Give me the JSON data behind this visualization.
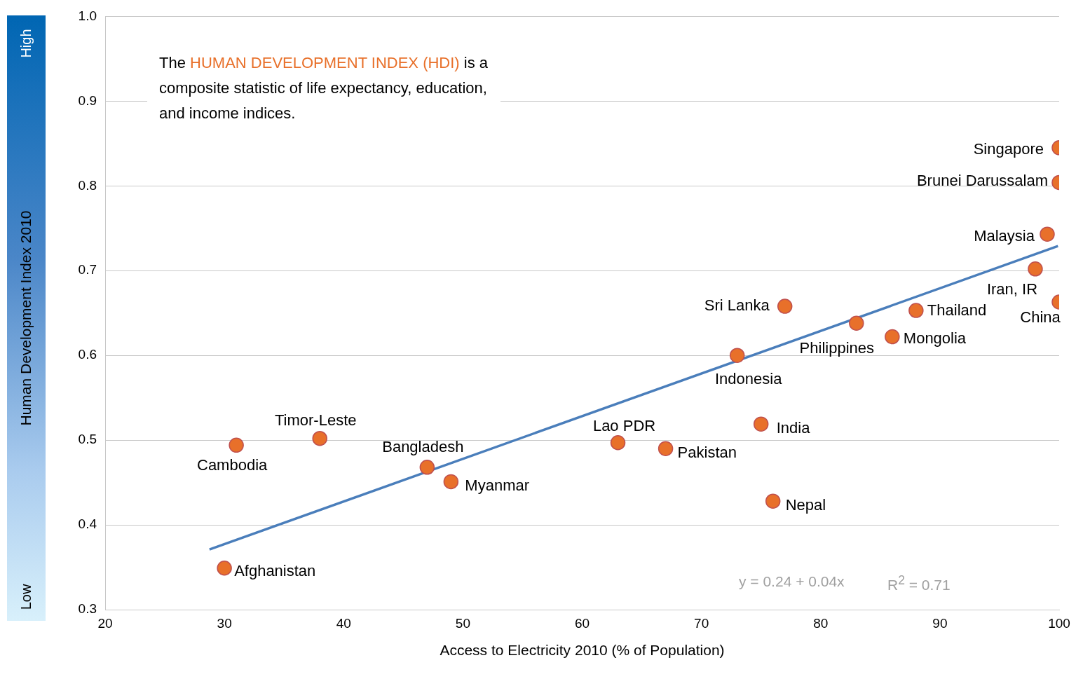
{
  "chart_data": {
    "type": "scatter",
    "xlabel": "Access to Electricity 2010 (% of Population)",
    "ylabel": "Human Development Index 2010",
    "annotations": [
      "The",
      "HUMAN DEVELOPMENT INDEX (HDI)",
      "is a composite statistic of life expectancy, education, and income indices.",
      "y = 0.24 + 0.04x",
      "R$^{2}$ = 0.71",
      "High",
      "Low"
    ],
    "xlim": [
      20,
      100
    ],
    "xticks": [
      20,
      30,
      40,
      50,
      60,
      70,
      80,
      90,
      100
    ],
    "ylim": [
      0.3,
      1.0
    ],
    "yticks": [
      {
        "value": 0.3,
        "label": "0.3"
      },
      {
        "value": 0.4,
        "label": "0.4"
      },
      {
        "value": 0.5,
        "label": "0.5"
      },
      {
        "value": 0.6,
        "label": "0.6"
      },
      {
        "value": 0.7,
        "label": "0.7"
      },
      {
        "value": 0.8,
        "label": "0.8"
      },
      {
        "value": 0.9,
        "label": "0.9"
      },
      {
        "value": 1.0,
        "label": "1.0"
      }
    ],
    "grid": "y",
    "legend": false,
    "marker": "circle",
    "series": [
      {
        "type": "scatter",
        "color": "#e8702a",
        "x": [
          100,
          100,
          99,
          98,
          100,
          77,
          83,
          88,
          86,
          73,
          75,
          76,
          67,
          63,
          49,
          47,
          38,
          31,
          30
        ],
        "values": [
          0.845,
          0.804,
          0.743,
          0.702,
          0.663,
          0.658,
          0.638,
          0.653,
          0.622,
          0.6,
          0.519,
          0.428,
          0.49,
          0.497,
          0.451,
          0.468,
          0.502,
          0.494,
          0.349
        ],
        "value_labels": [
          "Singapore",
          "Brunei Darussalam",
          "Malaysia",
          "Iran, IR",
          "China",
          "Sri Lanka",
          "Philippines",
          "Thailand",
          "Mongolia",
          "Indonesia",
          "India",
          "Nepal",
          "Pakistan",
          "Lao PDR",
          "Myanmar",
          "Bangladesh",
          "Timor-Leste",
          "Cambodia",
          "Afghanistan"
        ]
      },
      {
        "type": "line",
        "color": "#4a7ebb",
        "x": [
          28.75,
          99.9
        ],
        "values": [
          0.371,
          0.729
        ],
        "line_style": "solid",
        "marker": "none"
      }
    ]
  }
}
